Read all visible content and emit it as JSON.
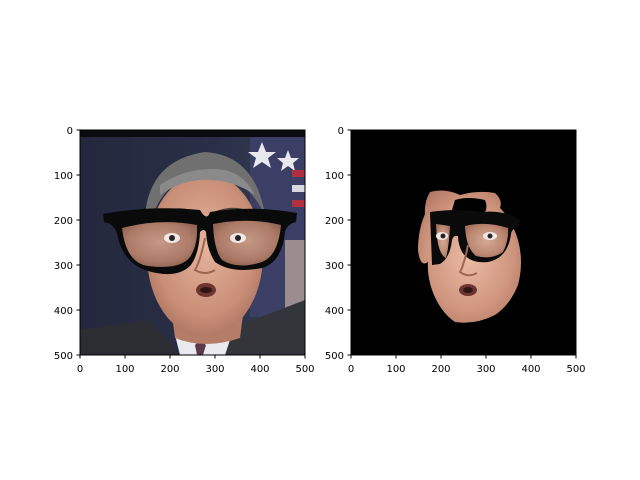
{
  "figure": {
    "panels": [
      {
        "content": "face photo with black eyeglasses overlay",
        "x_ticks": [
          "0",
          "100",
          "200",
          "300",
          "400",
          "500"
        ],
        "y_ticks": [
          "0",
          "100",
          "200",
          "300",
          "400",
          "500"
        ]
      },
      {
        "content": "segmented face mask on black background",
        "x_ticks": [
          "0",
          "100",
          "200",
          "300",
          "400",
          "500"
        ],
        "y_ticks": [
          "0",
          "100",
          "200",
          "300",
          "400",
          "500"
        ]
      }
    ]
  },
  "colors": {
    "background": "#ffffff",
    "axes_edge": "#000000",
    "mask_background": "#000000",
    "glasses": "#0a0a0a",
    "skin": "#d9a08a",
    "suit_backdrop": "#1f2438",
    "hair": "#6b6b6b"
  }
}
